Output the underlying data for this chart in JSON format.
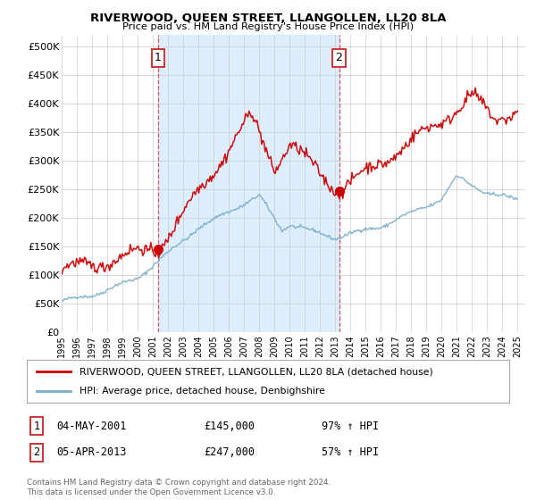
{
  "title": "RIVERWOOD, QUEEN STREET, LLANGOLLEN, LL20 8LA",
  "subtitle": "Price paid vs. HM Land Registry's House Price Index (HPI)",
  "legend_line1": "RIVERWOOD, QUEEN STREET, LLANGOLLEN, LL20 8LA (detached house)",
  "legend_line2": "HPI: Average price, detached house, Denbighshire",
  "annotation1_date": "04-MAY-2001",
  "annotation1_price": "£145,000",
  "annotation1_hpi": "97% ↑ HPI",
  "annotation1_value": 145000,
  "annotation1_year": 2001.35,
  "annotation2_date": "05-APR-2013",
  "annotation2_price": "£247,000",
  "annotation2_hpi": "57% ↑ HPI",
  "annotation2_value": 247000,
  "annotation2_year": 2013.25,
  "red_color": "#cc0000",
  "blue_color": "#7aaecc",
  "shade_color": "#ddeeff",
  "grid_color": "#cccccc",
  "bg_color": "#ffffff",
  "footer": "Contains HM Land Registry data © Crown copyright and database right 2024.\nThis data is licensed under the Open Government Licence v3.0.",
  "ylim": [
    0,
    520000
  ],
  "yticks": [
    0,
    50000,
    100000,
    150000,
    200000,
    250000,
    300000,
    350000,
    400000,
    450000,
    500000
  ],
  "ytick_labels": [
    "£0",
    "£50K",
    "£100K",
    "£150K",
    "£200K",
    "£250K",
    "£300K",
    "£350K",
    "£400K",
    "£450K",
    "£500K"
  ],
  "xtick_years": [
    1995,
    1996,
    1997,
    1998,
    1999,
    2000,
    2001,
    2002,
    2003,
    2004,
    2005,
    2006,
    2007,
    2008,
    2009,
    2010,
    2011,
    2012,
    2013,
    2014,
    2015,
    2016,
    2017,
    2018,
    2019,
    2020,
    2021,
    2022,
    2023,
    2024,
    2025
  ],
  "xlim_start": 1995,
  "xlim_end": 2025.5
}
